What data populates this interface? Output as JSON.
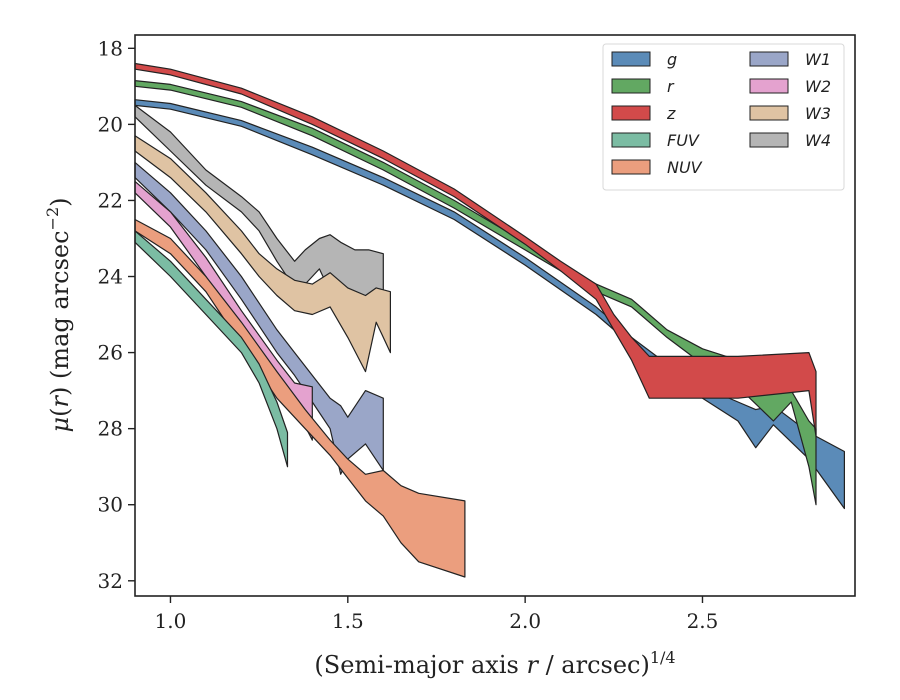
{
  "chart_data": {
    "type": "area",
    "xlabel": "(Semi-major axis r / arcsec)^1/4",
    "ylabel": "μ(r) (mag arcsec^−2)",
    "xlim": [
      0.9,
      2.93
    ],
    "ylim": [
      32.4,
      17.65
    ],
    "y_inverted": true,
    "grid": false,
    "legend_position": "top-right",
    "legend_columns": 2,
    "x_ticks": [
      {
        "value": 1.0,
        "label": "1.0"
      },
      {
        "value": 1.5,
        "label": "1.5"
      },
      {
        "value": 2.0,
        "label": "2.0"
      },
      {
        "value": 2.5,
        "label": "2.5"
      }
    ],
    "y_ticks": [
      {
        "value": 18,
        "label": "18"
      },
      {
        "value": 20,
        "label": "20"
      },
      {
        "value": 22,
        "label": "22"
      },
      {
        "value": 24,
        "label": "24"
      },
      {
        "value": 26,
        "label": "26"
      },
      {
        "value": 28,
        "label": "28"
      },
      {
        "value": 30,
        "label": "30"
      },
      {
        "value": 32,
        "label": "32"
      }
    ],
    "series": [
      {
        "name": "W4",
        "color": "#b5b5b5",
        "x": [
          0.9,
          1.0,
          1.1,
          1.2,
          1.25,
          1.3,
          1.35,
          1.38,
          1.42,
          1.45,
          1.48,
          1.52,
          1.56,
          1.6
        ],
        "y_upper": [
          19.5,
          20.2,
          21.2,
          21.9,
          22.3,
          23.0,
          23.6,
          23.3,
          23.0,
          22.9,
          23.1,
          23.3,
          23.3,
          23.4
        ],
        "y_lower": [
          19.8,
          20.7,
          21.6,
          22.3,
          22.8,
          23.6,
          24.3,
          24.2,
          23.8,
          24.4,
          24.8,
          24.8,
          24.9,
          24.9
        ]
      },
      {
        "name": "W3",
        "color": "#dfc3a3",
        "x": [
          0.9,
          1.0,
          1.1,
          1.2,
          1.25,
          1.3,
          1.35,
          1.4,
          1.45,
          1.5,
          1.55,
          1.58,
          1.62
        ],
        "y_upper": [
          20.3,
          20.9,
          21.8,
          22.8,
          23.4,
          23.8,
          24.1,
          24.2,
          23.9,
          24.3,
          24.5,
          24.3,
          24.4
        ],
        "y_lower": [
          20.7,
          21.4,
          22.3,
          23.4,
          24.0,
          24.5,
          24.9,
          25.0,
          24.8,
          25.6,
          26.5,
          25.2,
          26.0
        ]
      },
      {
        "name": "W1",
        "color": "#9aa6c8",
        "x": [
          0.9,
          1.0,
          1.1,
          1.2,
          1.3,
          1.35,
          1.4,
          1.45,
          1.48,
          1.5,
          1.55,
          1.6
        ],
        "y_upper": [
          21.0,
          21.8,
          22.8,
          24.0,
          25.4,
          26.0,
          26.6,
          27.2,
          27.4,
          27.7,
          27.0,
          27.2
        ],
        "y_lower": [
          21.4,
          22.3,
          23.3,
          24.6,
          26.0,
          26.6,
          27.3,
          28.0,
          29.2,
          28.8,
          28.4,
          29.1
        ]
      },
      {
        "name": "W2",
        "color": "#e4a2cf",
        "x": [
          0.9,
          1.0,
          1.1,
          1.2,
          1.3,
          1.35,
          1.4
        ],
        "y_upper": [
          21.5,
          22.3,
          23.5,
          24.9,
          26.2,
          26.8,
          26.9
        ],
        "y_lower": [
          21.8,
          22.7,
          24.0,
          25.5,
          26.8,
          27.4,
          28.3
        ]
      },
      {
        "name": "NUV",
        "color": "#eb9e7e",
        "x": [
          0.9,
          1.0,
          1.1,
          1.2,
          1.3,
          1.38,
          1.45,
          1.5,
          1.55,
          1.6,
          1.65,
          1.7,
          1.83
        ],
        "y_upper": [
          22.5,
          23.0,
          24.0,
          25.2,
          26.5,
          27.5,
          28.3,
          28.8,
          29.2,
          29.1,
          29.5,
          29.7,
          29.9
        ],
        "y_lower": [
          22.8,
          23.4,
          24.4,
          25.8,
          27.2,
          28.0,
          28.7,
          29.3,
          29.9,
          30.3,
          31.0,
          31.5,
          31.9
        ]
      },
      {
        "name": "FUV",
        "color": "#7bbca3",
        "x": [
          0.9,
          1.0,
          1.1,
          1.2,
          1.25,
          1.3,
          1.33
        ],
        "y_upper": [
          22.8,
          23.6,
          24.6,
          25.6,
          26.3,
          27.3,
          28.1
        ],
        "y_lower": [
          23.1,
          24.0,
          25.0,
          26.0,
          26.8,
          28.0,
          29.0
        ]
      },
      {
        "name": "g",
        "color": "#5b8bb8",
        "x": [
          0.9,
          1.0,
          1.2,
          1.4,
          1.6,
          1.8,
          2.0,
          2.2,
          2.3,
          2.4,
          2.5,
          2.6,
          2.65,
          2.7,
          2.8,
          2.9
        ],
        "y_upper": [
          19.35,
          19.45,
          19.9,
          20.6,
          21.4,
          22.3,
          23.5,
          24.8,
          25.6,
          26.3,
          26.9,
          27.3,
          27.5,
          27.4,
          28.1,
          28.6
        ],
        "y_lower": [
          19.5,
          19.6,
          20.05,
          20.8,
          21.6,
          22.5,
          23.7,
          25.0,
          25.8,
          26.5,
          27.2,
          27.8,
          28.5,
          27.9,
          28.8,
          30.1
        ]
      },
      {
        "name": "r",
        "color": "#62a862",
        "x": [
          0.9,
          1.0,
          1.2,
          1.4,
          1.6,
          1.8,
          2.0,
          2.2,
          2.3,
          2.4,
          2.5,
          2.6,
          2.7,
          2.75,
          2.8,
          2.82
        ],
        "y_upper": [
          18.85,
          18.95,
          19.4,
          20.1,
          21.0,
          22.0,
          23.1,
          24.2,
          24.6,
          25.4,
          25.9,
          26.2,
          26.5,
          27.0,
          27.8,
          28.0
        ],
        "y_lower": [
          19.0,
          19.1,
          19.55,
          20.3,
          21.2,
          22.2,
          23.3,
          24.4,
          24.8,
          25.6,
          26.3,
          26.9,
          27.8,
          27.3,
          29.0,
          30.0
        ]
      },
      {
        "name": "z",
        "color": "#d24a4a",
        "x": [
          0.9,
          1.0,
          1.2,
          1.4,
          1.6,
          1.8,
          2.0,
          2.1,
          2.2,
          2.25,
          2.3,
          2.35,
          2.6,
          2.8,
          2.82
        ],
        "y_upper": [
          18.4,
          18.55,
          19.05,
          19.8,
          20.7,
          21.7,
          22.95,
          23.6,
          24.2,
          25.0,
          25.6,
          26.1,
          26.1,
          26.0,
          26.5
        ],
        "y_lower": [
          18.55,
          18.7,
          19.2,
          20.0,
          20.9,
          21.9,
          23.15,
          23.85,
          24.6,
          25.4,
          26.2,
          27.2,
          27.2,
          27.0,
          28.2
        ]
      }
    ],
    "legend": [
      {
        "name": "g",
        "color": "#5b8bb8",
        "label": "g"
      },
      {
        "name": "r",
        "color": "#62a862",
        "label": "r"
      },
      {
        "name": "z",
        "color": "#d24a4a",
        "label": "z"
      },
      {
        "name": "FUV",
        "color": "#7bbca3",
        "label": "FUV"
      },
      {
        "name": "NUV",
        "color": "#eb9e7e",
        "label": "NUV"
      },
      {
        "name": "W1",
        "color": "#9aa6c8",
        "label": "W1"
      },
      {
        "name": "W2",
        "color": "#e4a2cf",
        "label": "W2"
      },
      {
        "name": "W3",
        "color": "#dfc3a3",
        "label": "W3"
      },
      {
        "name": "W4",
        "color": "#b5b5b5",
        "label": "W4"
      }
    ]
  }
}
